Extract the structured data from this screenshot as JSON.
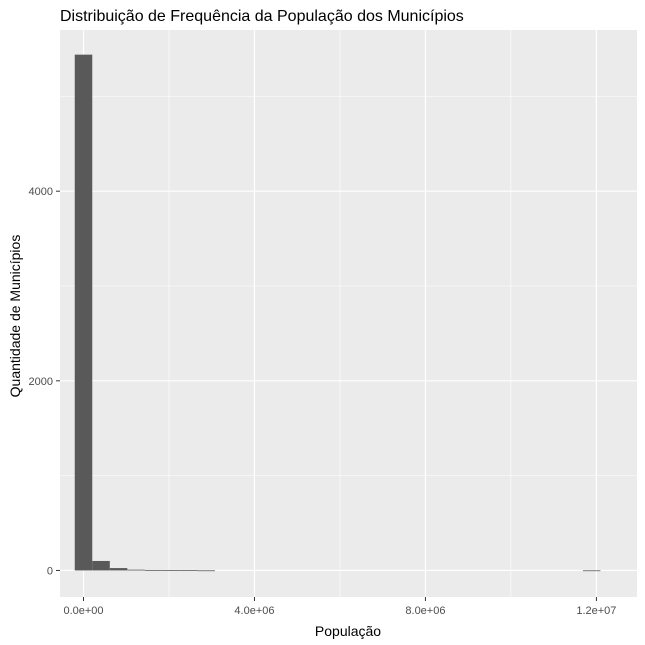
{
  "chart_data": {
    "type": "bar",
    "title": "Distribuição de Frequência da População dos Municípios",
    "xlabel": "População",
    "ylabel": "Quantidade de Municípios",
    "x_ticks": [
      {
        "value": 0,
        "label": "0.0e+00"
      },
      {
        "value": 4000000,
        "label": "4.0e+06"
      },
      {
        "value": 8000000,
        "label": "8.0e+06"
      },
      {
        "value": 12000000,
        "label": "1.2e+07"
      }
    ],
    "y_ticks": [
      {
        "value": 0,
        "label": "0"
      },
      {
        "value": 2000,
        "label": "2000"
      },
      {
        "value": 4000,
        "label": "4000"
      }
    ],
    "xlim": [
      -550000,
      12950000
    ],
    "ylim": [
      -280,
      5700
    ],
    "bin_width": 410000,
    "bins": [
      {
        "start": -205000,
        "end": 205000,
        "count": 5440
      },
      {
        "start": 205000,
        "end": 615000,
        "count": 100
      },
      {
        "start": 615000,
        "end": 1025000,
        "count": 25
      },
      {
        "start": 1025000,
        "end": 1435000,
        "count": 8
      },
      {
        "start": 1435000,
        "end": 1845000,
        "count": 5
      },
      {
        "start": 1845000,
        "end": 2255000,
        "count": 4
      },
      {
        "start": 2255000,
        "end": 2665000,
        "count": 3
      },
      {
        "start": 2665000,
        "end": 3075000,
        "count": 1
      },
      {
        "start": 11685000,
        "end": 12095000,
        "count": 1
      }
    ],
    "grid": true,
    "colors": {
      "panel": "#ebebeb",
      "grid": "#ffffff",
      "bar": "#595959"
    }
  }
}
